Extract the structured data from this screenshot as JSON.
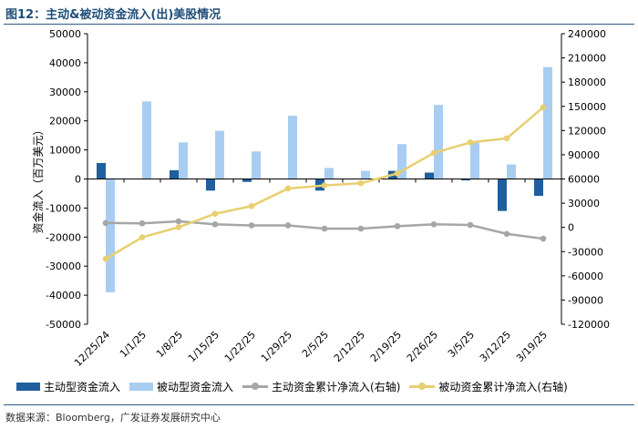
{
  "figure": {
    "title": "图12：主动&被动资金流入(出)美股情况",
    "source": "数据来源：Bloomberg，广发证券发展研究中心"
  },
  "chart_data": {
    "type": "bar",
    "categories": [
      "12/25/24",
      "1/1/25",
      "1/8/25",
      "1/15/25",
      "1/22/25",
      "1/29/25",
      "2/5/25",
      "2/12/25",
      "2/19/25",
      "2/26/25",
      "3/5/25",
      "3/12/25",
      "3/19/25"
    ],
    "ylabel": "资金流入（百万美元）",
    "ylim": [
      -50000,
      50000
    ],
    "y_ticks": [
      -50000,
      -40000,
      -30000,
      -20000,
      -10000,
      0,
      10000,
      20000,
      30000,
      40000,
      50000
    ],
    "y2lim": [
      -120000,
      240000
    ],
    "y2_ticks": [
      -120000,
      -90000,
      -60000,
      -30000,
      0,
      30000,
      60000,
      90000,
      120000,
      150000,
      180000,
      210000,
      240000
    ],
    "grid": false,
    "legend_position": "bottom",
    "series": [
      {
        "name": "主动型资金流入",
        "kind": "bar",
        "axis": "left",
        "color": "#1f5f9e",
        "values": [
          5500,
          0,
          3000,
          -4000,
          -1000,
          0,
          -4000,
          0,
          2800,
          2200,
          -500,
          -11000,
          -5800
        ]
      },
      {
        "name": "被动型资金流入",
        "kind": "bar",
        "axis": "left",
        "color": "#a9cdf1",
        "values": [
          -39000,
          26700,
          12600,
          16600,
          9500,
          21800,
          3800,
          2800,
          12000,
          25500,
          13000,
          5000,
          38500
        ]
      },
      {
        "name": "主动资金累计净流入(右轴)",
        "kind": "line",
        "axis": "right",
        "color": "#a6a6a6",
        "values": [
          5500,
          5000,
          7500,
          3800,
          2500,
          2500,
          -1500,
          -1500,
          1500,
          3800,
          3000,
          -8000,
          -14000
        ]
      },
      {
        "name": "被动资金累计净流入(右轴)",
        "kind": "line",
        "axis": "right",
        "color": "#e8cf70",
        "values": [
          -39000,
          -12300,
          300,
          16900,
          26400,
          48200,
          52000,
          54800,
          66800,
          92300,
          105300,
          110300,
          148800
        ]
      }
    ]
  }
}
